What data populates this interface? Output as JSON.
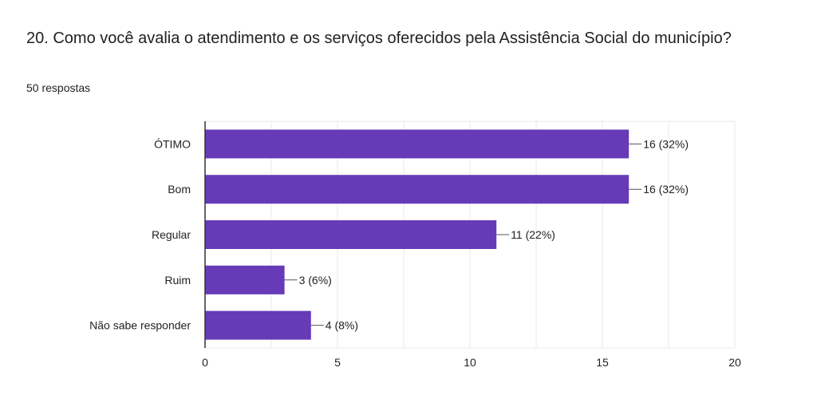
{
  "question": {
    "title": "20. Como você avalia o atendimento e os serviços oferecidos pela Assistência Social do município?",
    "responses": "50 respostas"
  },
  "colors": {
    "bar": "#673ab7",
    "grid": "#e8e8e8",
    "axis": "#333333"
  },
  "chart_data": {
    "type": "bar",
    "orientation": "horizontal",
    "title": "20. Como você avalia o atendimento e os serviços oferecidos pela Assistência Social do município?",
    "categories": [
      "ÓTIMO",
      "Bom",
      "Regular",
      "Ruim",
      "Não sabe responder"
    ],
    "values": [
      16,
      16,
      11,
      3,
      4
    ],
    "data_labels": [
      "16 (32%)",
      "16 (32%)",
      "11 (22%)",
      "3 (6%)",
      "4 (8%)"
    ],
    "xlim": [
      0,
      20
    ],
    "xticks": [
      0,
      5,
      10,
      15,
      20
    ],
    "grid": true,
    "xlabel": "",
    "ylabel": ""
  }
}
